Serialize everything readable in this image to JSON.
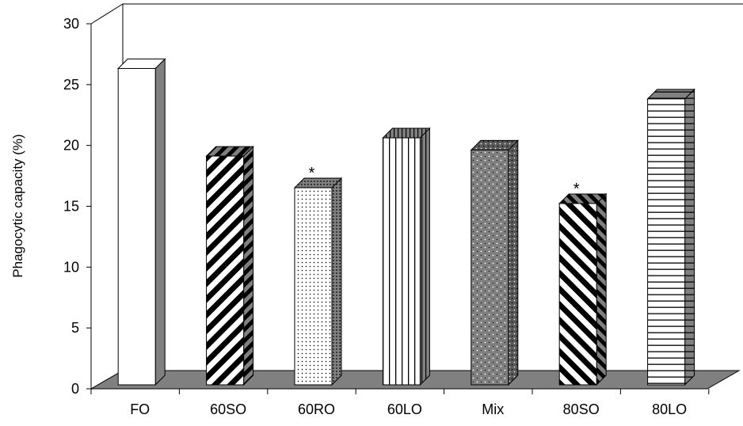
{
  "chart_data": {
    "type": "bar",
    "categories": [
      "FO",
      "60SO",
      "60RO",
      "60LO",
      "Mix",
      "80SO",
      "80LO"
    ],
    "values": [
      26.0,
      18.8,
      16.2,
      20.3,
      19.3,
      14.9,
      23.5
    ],
    "annotations": [
      "",
      "",
      "*",
      "",
      "",
      "*",
      ""
    ],
    "title": "",
    "xlabel": "",
    "ylabel": "Phagocytic capacity (%)",
    "ylim": [
      0,
      30
    ],
    "yticks": [
      "0",
      "5",
      "10",
      "15",
      "20",
      "25",
      "30"
    ],
    "grid": false,
    "legend": "none",
    "style": "3d-column",
    "colors": {
      "floor": "#808080",
      "outline": "#000000",
      "face": "#ffffff",
      "side": "#808080"
    },
    "patterns": [
      "none",
      "diag-wide",
      "dots",
      "vertical-lines",
      "checker-dots",
      "diag-back",
      "horizontal-lines"
    ]
  }
}
